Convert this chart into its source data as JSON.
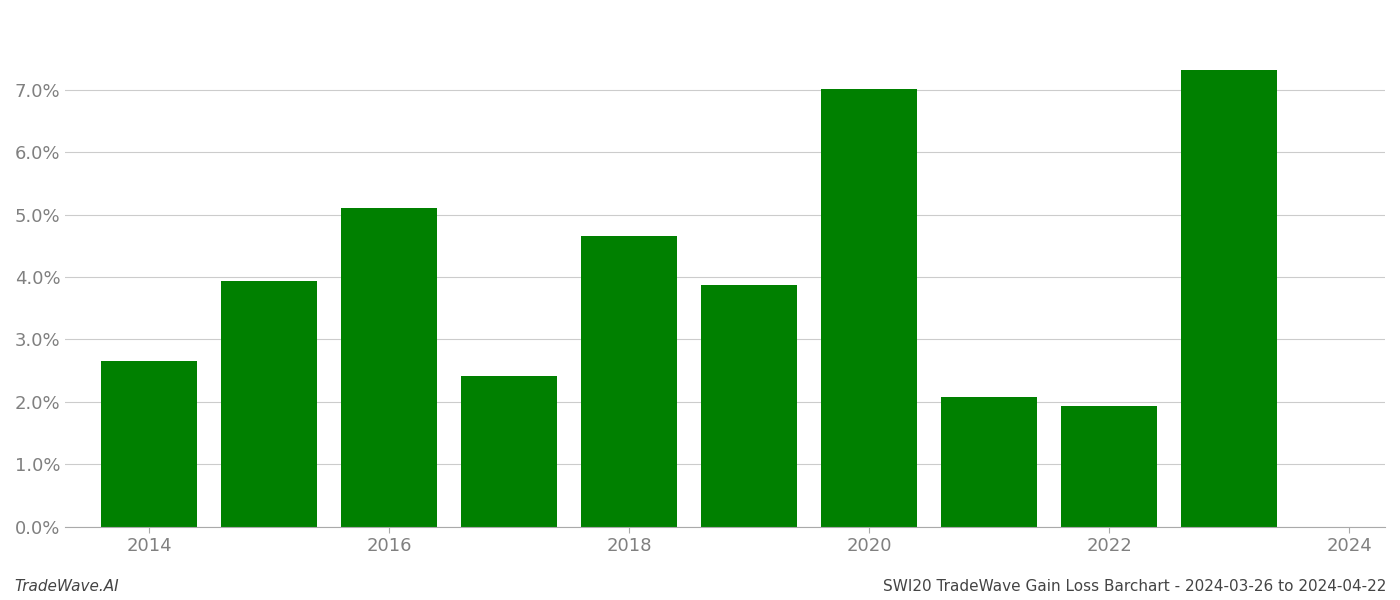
{
  "years": [
    2014,
    2015,
    2016,
    2017,
    2018,
    2019,
    2020,
    2021,
    2022,
    2023
  ],
  "values": [
    0.0265,
    0.0393,
    0.051,
    0.0242,
    0.0465,
    0.0388,
    0.0702,
    0.0208,
    0.0194,
    0.0732
  ],
  "bar_color": "#008000",
  "title": "SWI20 TradeWave Gain Loss Barchart - 2024-03-26 to 2024-04-22",
  "watermark": "TradeWave.AI",
  "background_color": "#ffffff",
  "grid_color": "#cccccc",
  "ylabel_color": "#808080",
  "xlabel_color": "#808080",
  "ylim": [
    0,
    0.082
  ],
  "yticks": [
    0.0,
    0.01,
    0.02,
    0.03,
    0.04,
    0.05,
    0.06,
    0.07
  ],
  "xticks": [
    2014,
    2016,
    2018,
    2020,
    2022,
    2024
  ],
  "bar_width": 0.8,
  "xlim": [
    2013.3,
    2024.3
  ]
}
